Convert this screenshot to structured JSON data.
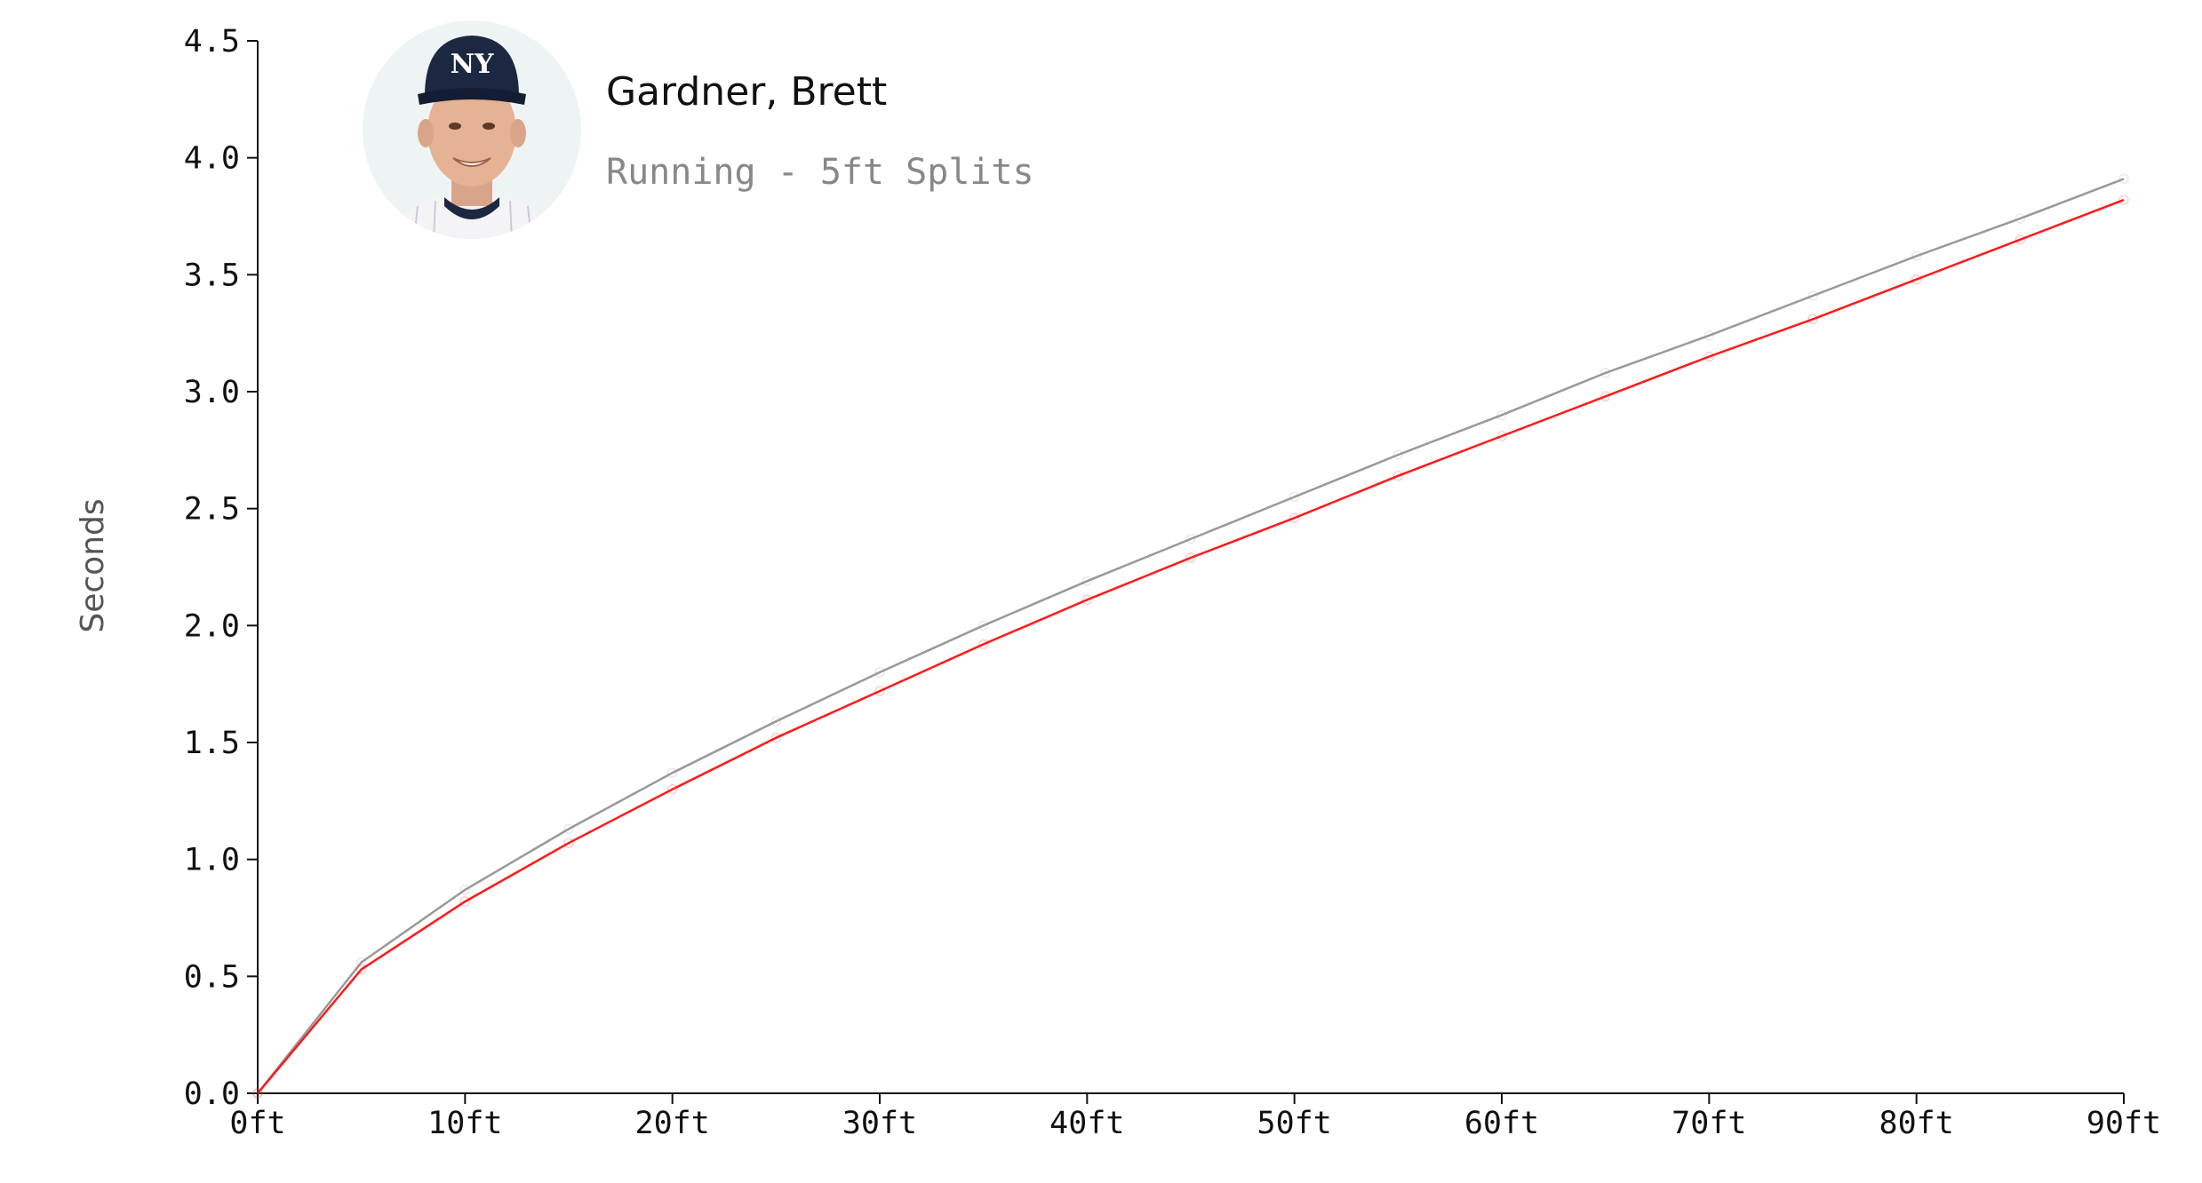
{
  "header": {
    "player_name": "Gardner, Brett",
    "subtitle": "Running - 5ft Splits"
  },
  "colors": {
    "player_line": "#ff1a1a",
    "comparison_line": "#999999",
    "axis": "#111111",
    "headshot_bg": "#eef4f4",
    "cap": "#1c2841"
  },
  "icons": {
    "headshot": "player-headshot",
    "cap_logo": "NY"
  },
  "chart_data": {
    "type": "line",
    "ylabel": "Seconds",
    "xlabel": "",
    "ylim": [
      0,
      4.5
    ],
    "xlim": [
      0,
      90
    ],
    "x": [
      0,
      5,
      10,
      15,
      20,
      25,
      30,
      35,
      40,
      45,
      50,
      55,
      60,
      65,
      70,
      75,
      80,
      85,
      90
    ],
    "x_ticks": [
      0,
      10,
      20,
      30,
      40,
      50,
      60,
      70,
      80,
      90
    ],
    "x_tick_labels": [
      "0ft",
      "10ft",
      "20ft",
      "30ft",
      "40ft",
      "50ft",
      "60ft",
      "70ft",
      "80ft",
      "90ft"
    ],
    "y_ticks": [
      0,
      0.5,
      1,
      1.5,
      2,
      2.5,
      3,
      3.5,
      4,
      4.5
    ],
    "y_tick_labels": [
      "0.0",
      "0.5",
      "1.0",
      "1.5",
      "2.0",
      "2.5",
      "3.0",
      "3.5",
      "4.0",
      "4.5"
    ],
    "series": [
      {
        "key": "comparison",
        "values": [
          0,
          0.56,
          0.87,
          1.13,
          1.37,
          1.59,
          1.8,
          2.0,
          2.19,
          2.37,
          2.55,
          2.73,
          2.9,
          3.08,
          3.24,
          3.41,
          3.58,
          3.74,
          3.91
        ]
      },
      {
        "key": "player",
        "values": [
          0,
          0.53,
          0.82,
          1.07,
          1.3,
          1.52,
          1.72,
          1.92,
          2.11,
          2.29,
          2.46,
          2.64,
          2.81,
          2.98,
          3.15,
          3.31,
          3.48,
          3.65,
          3.82
        ]
      }
    ],
    "grid": false,
    "legend": "none"
  }
}
